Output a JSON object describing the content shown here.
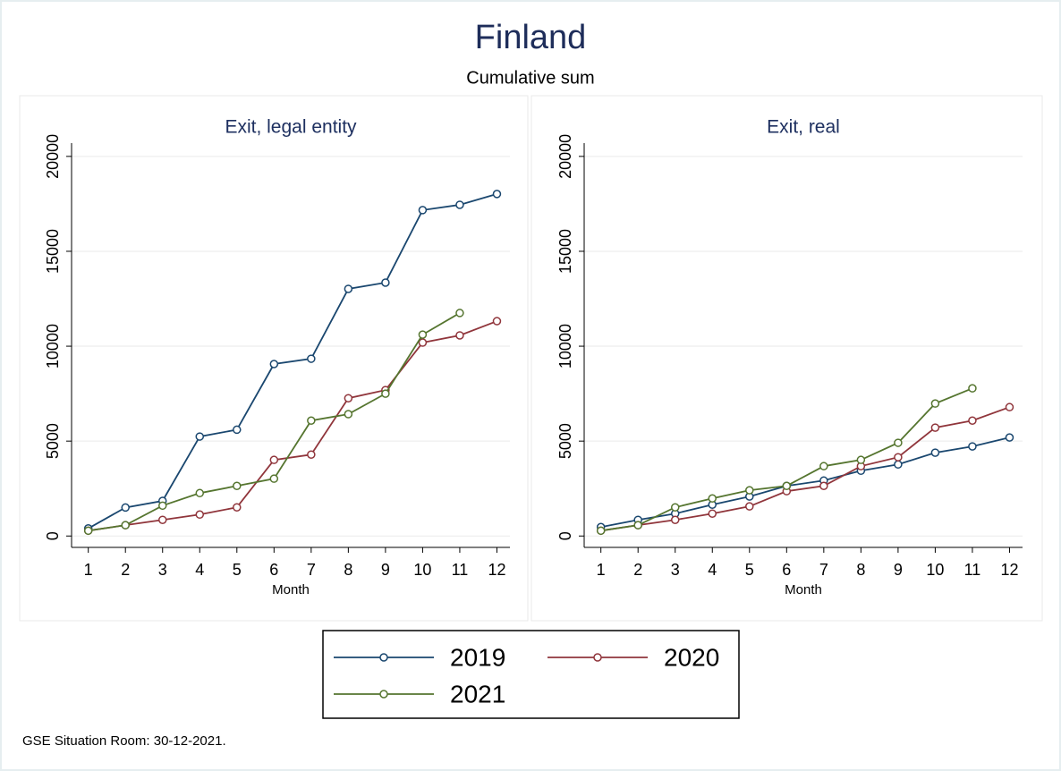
{
  "title": "Finland",
  "subtitle": "Cumulative sum",
  "note": "GSE Situation Room: 30-12-2021.",
  "chart_data": [
    {
      "type": "line",
      "title": "Exit, legal entity",
      "xlabel": "Month",
      "x": [
        1,
        2,
        3,
        4,
        5,
        6,
        7,
        8,
        9,
        10,
        11,
        12
      ],
      "xlim": [
        0.55,
        12.35
      ],
      "xticks": [
        1,
        2,
        3,
        4,
        5,
        6,
        7,
        8,
        9,
        10,
        11,
        12
      ],
      "ylim": [
        -600,
        20700
      ],
      "yticks": [
        0,
        5000,
        10000,
        15000,
        20000
      ],
      "grid": true,
      "series": [
        {
          "name": "2019",
          "color": "#1a476f",
          "values": [
            400,
            1500,
            1850,
            5240,
            5600,
            9060,
            9340,
            13020,
            13350,
            17170,
            17450,
            18020
          ]
        },
        {
          "name": "2020",
          "color": "#90353b",
          "values": [
            280,
            570,
            850,
            1130,
            1510,
            4010,
            4290,
            7260,
            7690,
            10190,
            10570,
            11320
          ]
        },
        {
          "name": "2021",
          "color": "#55752f",
          "values": [
            280,
            570,
            1600,
            2260,
            2640,
            3020,
            6080,
            6420,
            7500,
            10610,
            11750,
            null
          ]
        }
      ]
    },
    {
      "type": "line",
      "title": "Exit, real",
      "xlabel": "Month",
      "x": [
        1,
        2,
        3,
        4,
        5,
        6,
        7,
        8,
        9,
        10,
        11,
        12
      ],
      "xlim": [
        0.55,
        12.35
      ],
      "xticks": [
        1,
        2,
        3,
        4,
        5,
        6,
        7,
        8,
        9,
        10,
        11,
        12
      ],
      "ylim": [
        -600,
        20700
      ],
      "yticks": [
        0,
        5000,
        10000,
        15000,
        20000
      ],
      "grid": true,
      "series": [
        {
          "name": "2019",
          "color": "#1a476f",
          "values": [
            470,
            850,
            1180,
            1650,
            2080,
            2640,
            2920,
            3440,
            3770,
            4390,
            4720,
            5190
          ]
        },
        {
          "name": "2020",
          "color": "#90353b",
          "values": [
            280,
            570,
            850,
            1180,
            1560,
            2360,
            2640,
            3680,
            4150,
            5710,
            6080,
            6790
          ]
        },
        {
          "name": "2021",
          "color": "#55752f",
          "values": [
            280,
            570,
            1510,
            1980,
            2410,
            2640,
            3680,
            4010,
            4910,
            6980,
            7780,
            null
          ]
        }
      ]
    }
  ]
}
